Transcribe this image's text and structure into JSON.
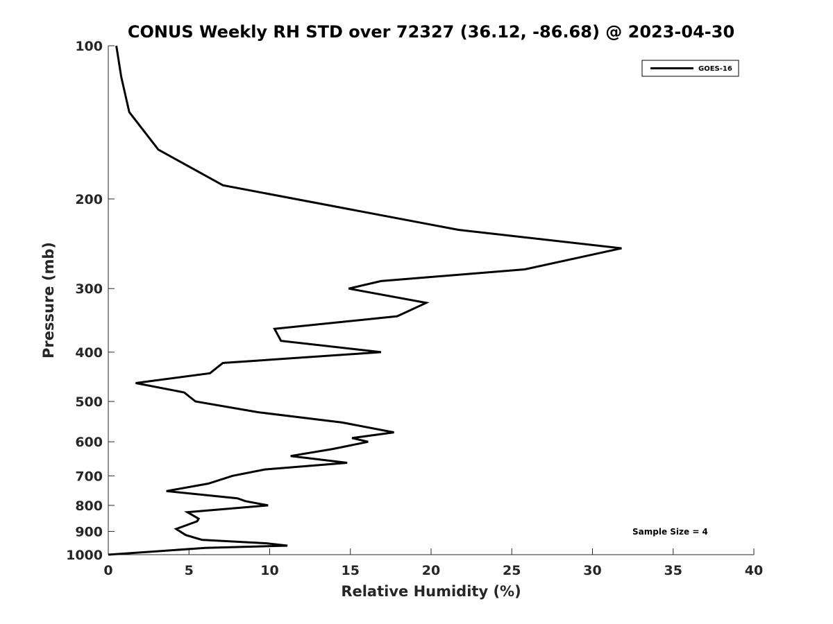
{
  "chart_data": {
    "type": "line",
    "title": "CONUS Weekly RH STD over 72327 (36.12, -86.68) @ 2023-04-30",
    "xlabel": "Relative Humidity (%)",
    "ylabel": "Pressure (mb)",
    "xlim": [
      0,
      40
    ],
    "ylim": [
      1000,
      100
    ],
    "y_scale": "log",
    "y_inverted": true,
    "x_ticks": [
      0,
      5,
      10,
      15,
      20,
      25,
      30,
      35,
      40
    ],
    "x_tick_labels": [
      "0",
      "5",
      "10",
      "15",
      "20",
      "25",
      "30",
      "35",
      "40"
    ],
    "y_ticks": [
      100,
      200,
      300,
      400,
      500,
      600,
      700,
      800,
      900,
      1000
    ],
    "y_tick_labels": [
      "100",
      "200",
      "300",
      "400",
      "500",
      "600",
      "700",
      "800",
      "900",
      "1000"
    ],
    "grid": false,
    "legend": {
      "placement": "top-right",
      "entries": [
        "GOES-16"
      ]
    },
    "annotation": "Sample Size = 4",
    "series": [
      {
        "name": "GOES-16",
        "color": "#000000",
        "points": [
          [
            0.5,
            100
          ],
          [
            0.8,
            115
          ],
          [
            1.3,
            135
          ],
          [
            3.1,
            160
          ],
          [
            7.1,
            188
          ],
          [
            21.7,
            230
          ],
          [
            31.8,
            250
          ],
          [
            25.8,
            275
          ],
          [
            16.9,
            290
          ],
          [
            14.9,
            300
          ],
          [
            19.7,
            320
          ],
          [
            17.9,
            340
          ],
          [
            10.3,
            360
          ],
          [
            10.7,
            380
          ],
          [
            16.9,
            400
          ],
          [
            7.1,
            420
          ],
          [
            6.3,
            440
          ],
          [
            1.7,
            460
          ],
          [
            4.7,
            480
          ],
          [
            5.4,
            500
          ],
          [
            9.3,
            525
          ],
          [
            14.5,
            550
          ],
          [
            17.7,
            575
          ],
          [
            15.1,
            590
          ],
          [
            16.1,
            600
          ],
          [
            13.9,
            620
          ],
          [
            11.3,
            640
          ],
          [
            14.8,
            660
          ],
          [
            9.7,
            680
          ],
          [
            7.7,
            700
          ],
          [
            6.2,
            725
          ],
          [
            3.6,
            750
          ],
          [
            8.0,
            775
          ],
          [
            8.5,
            785
          ],
          [
            9.9,
            800
          ],
          [
            4.9,
            825
          ],
          [
            5.6,
            850
          ],
          [
            5.5,
            860
          ],
          [
            4.2,
            890
          ],
          [
            4.8,
            915
          ],
          [
            5.8,
            935
          ],
          [
            9.8,
            950
          ],
          [
            11.1,
            960
          ],
          [
            6.0,
            970
          ],
          [
            0.0,
            1000
          ]
        ]
      }
    ]
  }
}
